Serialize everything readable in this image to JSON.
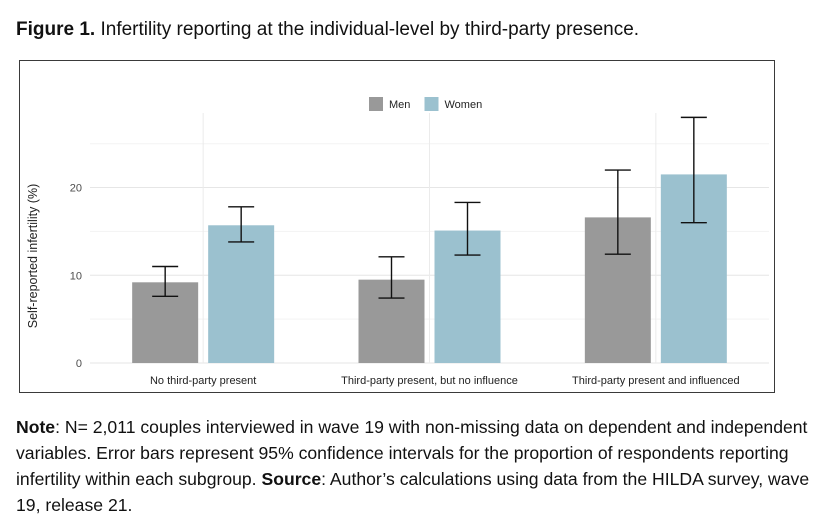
{
  "figure": {
    "label": "Figure 1.",
    "title": "Infertility reporting at the individual-level by third-party presence."
  },
  "note": {
    "note_label": "Note",
    "note_text": ": N= 2,011 couples interviewed in wave 19 with non-missing data on dependent and independent variables. Error bars represent 95% confidence intervals for the proportion of respondents reporting infertility within each subgroup. ",
    "source_label": "Source",
    "source_text": ": Author’s calculations using data from the HILDA survey, wave 19, release 21."
  },
  "chart_data": {
    "type": "bar",
    "title": "",
    "xlabel": "",
    "ylabel": "Self-reported infertility (%)",
    "ylim": [
      0,
      28.5
    ],
    "yticks": [
      0,
      10,
      20
    ],
    "grid": true,
    "legend_position": "top",
    "categories": [
      "No third-party present",
      "Third-party present, but no influence",
      "Third-party present and influenced"
    ],
    "series": [
      {
        "name": "Men",
        "color": "#999999",
        "values": [
          9.2,
          9.5,
          16.6
        ],
        "ci_low": [
          7.6,
          7.4,
          12.4
        ],
        "ci_high": [
          11.0,
          12.1,
          22.0
        ]
      },
      {
        "name": "Women",
        "color": "#9bc1cf",
        "values": [
          15.7,
          15.1,
          21.5
        ],
        "ci_low": [
          13.8,
          12.3,
          16.0
        ],
        "ci_high": [
          17.8,
          18.3,
          28.0
        ]
      }
    ]
  }
}
